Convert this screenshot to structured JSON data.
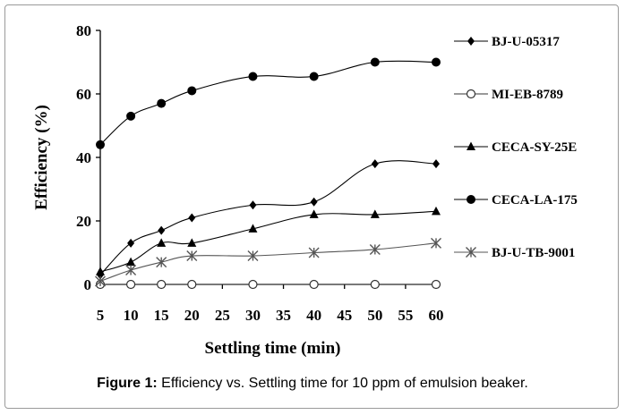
{
  "caption": {
    "label": "Figure 1:",
    "text": "Efficiency vs. Settling time for 10 ppm of emulsion beaker."
  },
  "chart_data": {
    "type": "line",
    "xlabel": "Settling time  (min)",
    "ylabel": "Efficiency  (%)",
    "xlim": [
      5,
      60
    ],
    "ylim": [
      0,
      80
    ],
    "xticks": [
      5,
      10,
      15,
      20,
      25,
      30,
      35,
      40,
      45,
      50,
      55,
      60
    ],
    "yticks": [
      0,
      20,
      40,
      60,
      80
    ],
    "grid": false,
    "legend_position": "right",
    "series": [
      {
        "name": "BJ-U-05317",
        "marker": "diamond",
        "x": [
          5,
          10,
          15,
          20,
          30,
          40,
          50,
          60
        ],
        "y": [
          3,
          13,
          17,
          21,
          25,
          26,
          38,
          38
        ]
      },
      {
        "name": "MI-EB-8789",
        "marker": "open-circle",
        "x": [
          5,
          10,
          15,
          20,
          30,
          40,
          50,
          60
        ],
        "y": [
          0,
          0,
          0,
          0,
          0,
          0,
          0,
          0
        ]
      },
      {
        "name": "CECA-SY-25E",
        "marker": "triangle",
        "x": [
          5,
          10,
          15,
          20,
          30,
          40,
          50,
          60
        ],
        "y": [
          4,
          7,
          13,
          13,
          17.5,
          22,
          22,
          23
        ]
      },
      {
        "name": "CECA-LA-175",
        "marker": "filled-circle",
        "x": [
          5,
          10,
          15,
          20,
          30,
          40,
          50,
          60
        ],
        "y": [
          44,
          53,
          57,
          61,
          65.5,
          65.5,
          70,
          70
        ]
      },
      {
        "name": "BJ-U-TB-9001",
        "marker": "asterisk",
        "x": [
          5,
          10,
          15,
          20,
          30,
          40,
          50,
          60
        ],
        "y": [
          1,
          4.5,
          7,
          9,
          9,
          10,
          11,
          13
        ]
      }
    ]
  }
}
